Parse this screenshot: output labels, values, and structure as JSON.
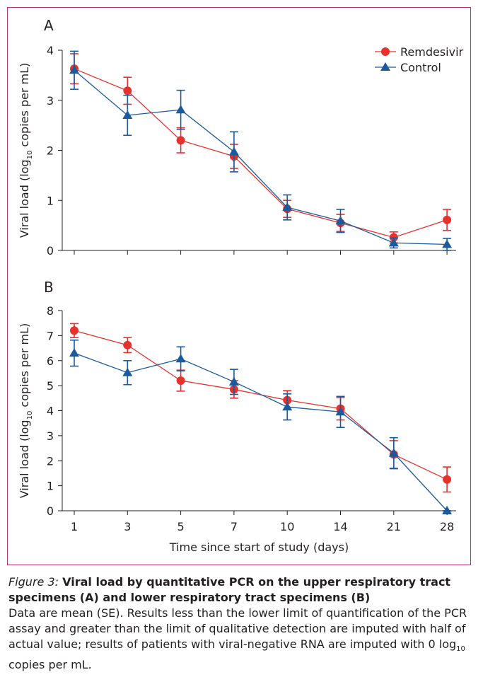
{
  "chart_data": [
    {
      "type": "line",
      "panel": "A",
      "ylabel": [
        "Viral load (log",
        "10",
        " copies per mL)"
      ],
      "ylim": [
        0,
        4
      ],
      "yticks": [
        0,
        1,
        2,
        3,
        4
      ],
      "legend": "top-right",
      "series": [
        {
          "name": "Remdesivir",
          "color": "#e5322d",
          "marker": "circle",
          "values": [
            3.63,
            3.19,
            2.2,
            1.88,
            0.83,
            0.55,
            0.26,
            0.61
          ],
          "errors": [
            0.3,
            0.27,
            0.25,
            0.24,
            0.17,
            0.17,
            0.11,
            0.21
          ]
        },
        {
          "name": "Control",
          "color": "#1b5a9c",
          "marker": "triangle",
          "values": [
            3.6,
            2.7,
            2.81,
            1.97,
            0.86,
            0.59,
            0.15,
            0.12
          ],
          "errors": [
            0.38,
            0.4,
            0.39,
            0.4,
            0.25,
            0.23,
            0.1,
            0.12
          ]
        }
      ]
    },
    {
      "type": "line",
      "panel": "B",
      "ylabel": [
        "Viral load (log",
        "10",
        " copies per mL)"
      ],
      "xlabel": "Time since start of study (days)",
      "categories": [
        "1",
        "3",
        "5",
        "7",
        "10",
        "14",
        "21",
        "28"
      ],
      "ylim": [
        0,
        8
      ],
      "yticks": [
        0,
        1,
        2,
        3,
        4,
        5,
        6,
        7,
        8
      ],
      "series": [
        {
          "color": "#e5322d",
          "marker": "circle",
          "values": [
            7.2,
            6.62,
            5.2,
            4.85,
            4.42,
            4.08,
            2.25,
            1.25
          ],
          "errors": [
            0.28,
            0.3,
            0.42,
            0.35,
            0.38,
            0.45,
            0.55,
            0.5
          ]
        },
        {
          "color": "#1b5a9c",
          "marker": "triangle",
          "values": [
            6.3,
            5.52,
            6.07,
            5.15,
            4.15,
            3.95,
            2.3,
            0
          ],
          "errors": [
            0.52,
            0.48,
            0.48,
            0.5,
            0.52,
            0.62,
            0.62,
            0
          ]
        }
      ]
    }
  ],
  "caption": {
    "figure_label": "Figure 3:",
    "title": "Viral load by quantitative PCR on the upper respiratory tract specimens (A) and lower respiratory tract specimens (B)",
    "body": [
      "Data are mean (SE). Results less than the lower limit of quantification of the PCR assay and greater than the limit of qualitative detection are imputed with half of actual value; results of patients with viral-negative RNA are imputed with 0 log",
      "10",
      " copies per mL."
    ]
  }
}
